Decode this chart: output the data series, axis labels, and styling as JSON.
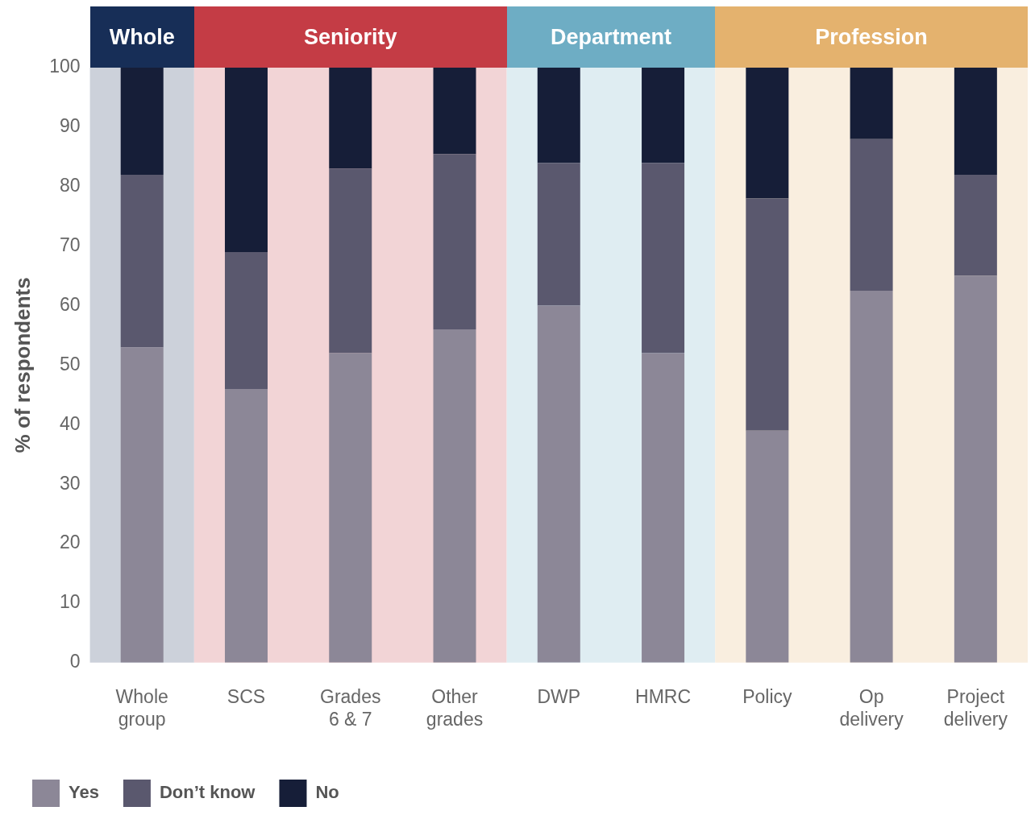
{
  "chart_data": {
    "type": "bar",
    "stacked": true,
    "ylabel": "% of respondents",
    "categories": [
      "Whole group",
      "SCS",
      "Grades 6 & 7",
      "Other grades",
      "DWP",
      "HMRC",
      "Policy",
      "Op delivery",
      "Project delivery"
    ],
    "series": [
      {
        "name": "Yes",
        "color": "#8c8797",
        "values": [
          53,
          46,
          52,
          56,
          60,
          52,
          39,
          62.5,
          65
        ]
      },
      {
        "name": "Don’t know",
        "color": "#5a586e",
        "values": [
          29,
          23,
          31,
          29.5,
          24,
          32,
          39,
          25.5,
          17
        ]
      },
      {
        "name": "No",
        "color": "#161e38",
        "values": [
          18,
          31,
          17,
          14.5,
          16,
          16,
          22,
          12,
          18
        ]
      }
    ],
    "ylim": [
      0,
      100
    ],
    "yticks": [
      0,
      10,
      20,
      30,
      40,
      50,
      60,
      70,
      80,
      90,
      100
    ],
    "grid": false,
    "legend": "bottom left",
    "bands": [
      {
        "axis": "x",
        "from": "Whole group",
        "to": "Whole group",
        "label": "Whole",
        "color": "#ccd1da"
      },
      {
        "axis": "x",
        "from": "SCS",
        "to": "Other grades",
        "label": "Seniority",
        "color": "#f2d4d6"
      },
      {
        "axis": "x",
        "from": "DWP",
        "to": "HMRC",
        "label": "Department",
        "color": "#dfedf2"
      },
      {
        "axis": "x",
        "from": "Policy",
        "to": "Project delivery",
        "label": "Profession",
        "color": "#f9eedf"
      }
    ]
  }
}
